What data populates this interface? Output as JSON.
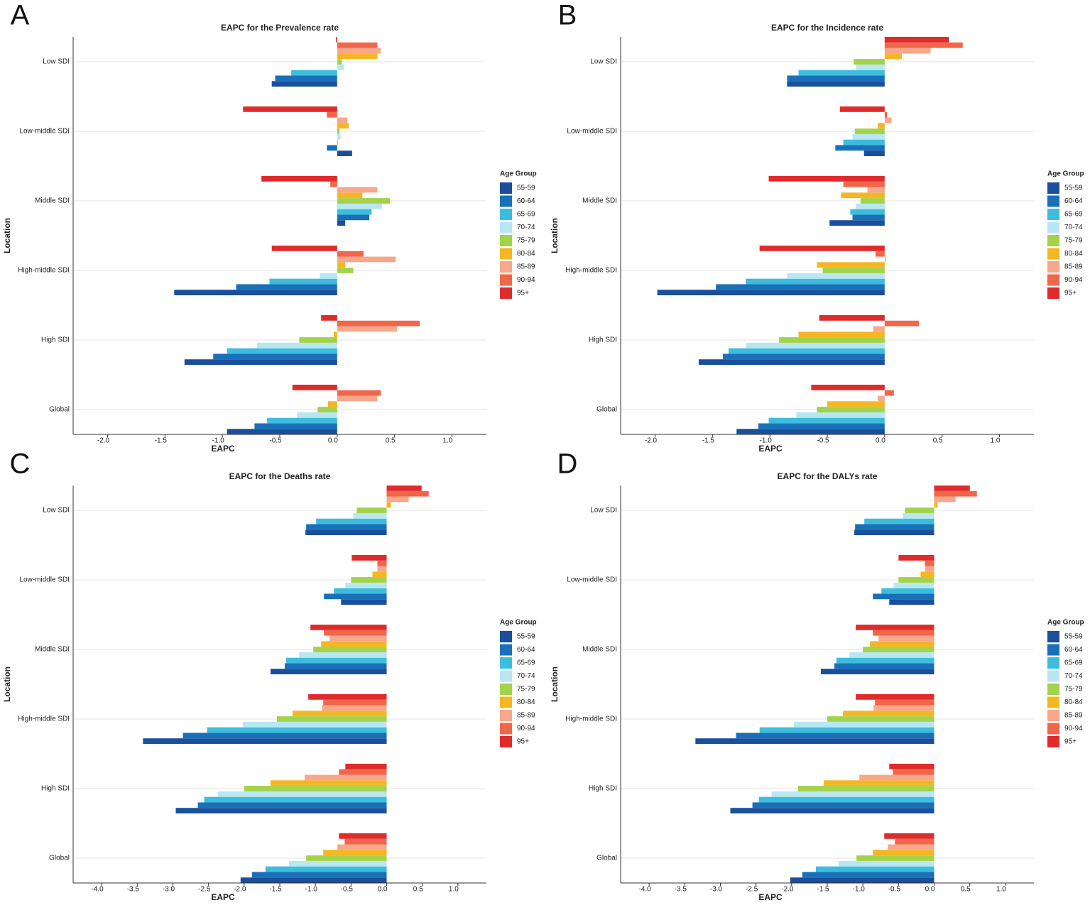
{
  "chart_data": [
    {
      "type": "bar",
      "orientation": "horizontal",
      "panel_label": "A",
      "title": "EAPC for the Prevalence rate",
      "x_label": "EAPC",
      "y_label": "Location",
      "legend_title": "Age Group",
      "categories": [
        "Low SDI",
        "Low-middle SDI",
        "Middle SDI",
        "High-middle SDI",
        "High SDI",
        "Global"
      ],
      "xlim": [
        -2.3,
        1.3
      ],
      "xticks": [
        {
          "value": -2,
          "label": "-2.0"
        },
        -1.5,
        {
          "value": -1,
          "label": "-1.0"
        },
        -0.5,
        {
          "value": 0,
          "label": "0.0"
        },
        0.5,
        {
          "value": 1,
          "label": "1.0"
        }
      ],
      "series": [
        {
          "name": "55-59",
          "color": "#1b4f9c",
          "values": [
            -0.57,
            0.13,
            0.07,
            -1.42,
            -1.33,
            -0.96
          ]
        },
        {
          "name": "60-64",
          "color": "#1a70b8",
          "values": [
            -0.54,
            -0.09,
            0.28,
            -0.88,
            -1.08,
            -0.72
          ]
        },
        {
          "name": "65-69",
          "color": "#3dbddd",
          "values": [
            -0.4,
            0.0,
            0.3,
            -0.59,
            -0.96,
            -0.61
          ]
        },
        {
          "name": "70-74",
          "color": "#b9e7f1",
          "values": [
            0.06,
            0.03,
            0.39,
            -0.15,
            -0.7,
            -0.35
          ]
        },
        {
          "name": "75-79",
          "color": "#a3d24b",
          "values": [
            0.04,
            0.02,
            0.46,
            0.14,
            -0.33,
            -0.17
          ]
        },
        {
          "name": "80-84",
          "color": "#f5b623",
          "values": [
            0.35,
            0.1,
            0.22,
            0.07,
            -0.03,
            -0.08
          ]
        },
        {
          "name": "85-89",
          "color": "#f7a78b",
          "values": [
            0.38,
            0.09,
            0.35,
            0.51,
            0.52,
            0.35
          ]
        },
        {
          "name": "90-94",
          "color": "#f06649",
          "values": [
            0.35,
            -0.09,
            -0.06,
            0.23,
            0.72,
            0.38
          ]
        },
        {
          "name": "95+",
          "color": "#e02b2b",
          "values": [
            -0.01,
            -0.82,
            -0.66,
            -0.57,
            -0.14,
            -0.39
          ]
        }
      ]
    },
    {
      "type": "bar",
      "orientation": "horizontal",
      "panel_label": "B",
      "title": "EAPC for the Incidence rate",
      "x_label": "EAPC",
      "y_label": "Location",
      "legend_title": "Age Group",
      "categories": [
        "Low SDI",
        "Low-middle SDI",
        "Middle SDI",
        "High-middle SDI",
        "High SDI",
        "Global"
      ],
      "xlim": [
        -2.3,
        1.3
      ],
      "xticks": [
        {
          "value": -2,
          "label": "-2.0"
        },
        -1.5,
        {
          "value": -1,
          "label": "-1.0"
        },
        -0.5,
        {
          "value": 0,
          "label": "0.0"
        },
        0.5,
        {
          "value": 1,
          "label": "1.0"
        }
      ],
      "series": [
        {
          "name": "55-59",
          "color": "#1b4f9c",
          "values": [
            -0.85,
            -0.18,
            -0.48,
            -1.98,
            -1.62,
            -1.29
          ]
        },
        {
          "name": "60-64",
          "color": "#1a70b8",
          "values": [
            -0.85,
            -0.43,
            -0.28,
            -1.47,
            -1.41,
            -1.1
          ]
        },
        {
          "name": "65-69",
          "color": "#3dbddd",
          "values": [
            -0.75,
            -0.36,
            -0.3,
            -1.21,
            -1.36,
            -1.01
          ]
        },
        {
          "name": "70-74",
          "color": "#b9e7f1",
          "values": [
            -0.25,
            -0.28,
            -0.25,
            -0.85,
            -1.21,
            -0.77
          ]
        },
        {
          "name": "75-79",
          "color": "#a3d24b",
          "values": [
            -0.27,
            -0.26,
            -0.21,
            -0.54,
            -0.92,
            -0.59
          ]
        },
        {
          "name": "80-84",
          "color": "#f5b623",
          "values": [
            0.15,
            -0.06,
            -0.38,
            -0.59,
            -0.75,
            -0.5
          ]
        },
        {
          "name": "85-89",
          "color": "#f7a78b",
          "values": [
            0.4,
            0.06,
            -0.15,
            0.01,
            -0.1,
            -0.06
          ]
        },
        {
          "name": "90-94",
          "color": "#f06649",
          "values": [
            0.68,
            0.02,
            -0.36,
            -0.08,
            0.3,
            0.08
          ]
        },
        {
          "name": "95+",
          "color": "#e02b2b",
          "values": [
            0.56,
            -0.39,
            -1.01,
            -1.09,
            -0.57,
            -0.64
          ]
        }
      ]
    },
    {
      "type": "bar",
      "orientation": "horizontal",
      "panel_label": "C",
      "title": "EAPC for the Deaths rate",
      "x_label": "EAPC",
      "y_label": "Location",
      "legend_title": "Age Group",
      "categories": [
        "Low SDI",
        "Low-middle SDI",
        "Middle SDI",
        "High-middle SDI",
        "High SDI",
        "Global"
      ],
      "xlim": [
        -4.4,
        1.4
      ],
      "xticks": [
        {
          "value": -4,
          "label": "-4.0"
        },
        -3.5,
        {
          "value": -3,
          "label": "-3.0"
        },
        -2.5,
        {
          "value": -2,
          "label": "-2.0"
        },
        -1.5,
        {
          "value": -1,
          "label": "-1.0"
        },
        -0.5,
        {
          "value": 0,
          "label": "0.0"
        },
        0.5,
        {
          "value": 1,
          "label": "1.0"
        }
      ],
      "series": [
        {
          "name": "55-59",
          "color": "#1b4f9c",
          "values": [
            -1.14,
            -0.64,
            -1.63,
            -3.42,
            -2.96,
            -2.05
          ]
        },
        {
          "name": "60-64",
          "color": "#1a70b8",
          "values": [
            -1.13,
            -0.88,
            -1.43,
            -2.86,
            -2.65,
            -1.89
          ]
        },
        {
          "name": "65-69",
          "color": "#3dbddd",
          "values": [
            -0.99,
            -0.74,
            -1.41,
            -2.52,
            -2.56,
            -1.7
          ]
        },
        {
          "name": "70-74",
          "color": "#b9e7f1",
          "values": [
            -0.47,
            -0.58,
            -1.23,
            -2.02,
            -2.37,
            -1.37
          ]
        },
        {
          "name": "75-79",
          "color": "#a3d24b",
          "values": [
            -0.42,
            -0.5,
            -1.03,
            -1.54,
            -2.0,
            -1.13
          ]
        },
        {
          "name": "80-84",
          "color": "#f5b623",
          "values": [
            0.06,
            -0.2,
            -0.92,
            -1.32,
            -1.63,
            -0.89
          ]
        },
        {
          "name": "85-89",
          "color": "#f7a78b",
          "values": [
            0.31,
            -0.13,
            -0.8,
            -0.91,
            -1.15,
            -0.69
          ]
        },
        {
          "name": "90-94",
          "color": "#f06649",
          "values": [
            0.59,
            -0.13,
            -0.88,
            -0.89,
            -0.67,
            -0.59
          ]
        },
        {
          "name": "95+",
          "color": "#e02b2b",
          "values": [
            0.49,
            -0.49,
            -1.07,
            -1.1,
            -0.58,
            -0.67
          ]
        }
      ]
    },
    {
      "type": "bar",
      "orientation": "horizontal",
      "panel_label": "D",
      "title": "EAPC for the DALYs rate",
      "x_label": "EAPC",
      "y_label": "Location",
      "legend_title": "Age Group",
      "categories": [
        "Low SDI",
        "Low-middle SDI",
        "Middle SDI",
        "High-middle SDI",
        "High SDI",
        "Global"
      ],
      "xlim": [
        -4.4,
        1.4
      ],
      "xticks": [
        {
          "value": -4,
          "label": "-4.0"
        },
        -3.5,
        {
          "value": -3,
          "label": "-3.0"
        },
        -2.5,
        {
          "value": -2,
          "label": "-2.0"
        },
        -1.5,
        {
          "value": -1,
          "label": "-1.0"
        },
        -0.5,
        {
          "value": 0,
          "label": "0.0"
        },
        0.5,
        {
          "value": 1,
          "label": "1.0"
        }
      ],
      "series": [
        {
          "name": "55-59",
          "color": "#1b4f9c",
          "values": [
            -1.12,
            -0.63,
            -1.59,
            -3.35,
            -2.86,
            -2.02
          ]
        },
        {
          "name": "60-64",
          "color": "#1a70b8",
          "values": [
            -1.11,
            -0.86,
            -1.4,
            -2.78,
            -2.55,
            -1.85
          ]
        },
        {
          "name": "65-69",
          "color": "#3dbddd",
          "values": [
            -0.98,
            -0.74,
            -1.37,
            -2.45,
            -2.46,
            -1.66
          ]
        },
        {
          "name": "70-74",
          "color": "#b9e7f1",
          "values": [
            -0.44,
            -0.57,
            -1.19,
            -1.97,
            -2.28,
            -1.34
          ]
        },
        {
          "name": "75-79",
          "color": "#a3d24b",
          "values": [
            -0.41,
            -0.5,
            -1.0,
            -1.5,
            -1.91,
            -1.09
          ]
        },
        {
          "name": "80-84",
          "color": "#f5b623",
          "values": [
            0.05,
            -0.19,
            -0.9,
            -1.28,
            -1.55,
            -0.86
          ]
        },
        {
          "name": "85-89",
          "color": "#f7a78b",
          "values": [
            0.3,
            -0.13,
            -0.78,
            -0.85,
            -1.05,
            -0.65
          ]
        },
        {
          "name": "90-94",
          "color": "#f06649",
          "values": [
            0.6,
            -0.13,
            -0.86,
            -0.83,
            -0.58,
            -0.55
          ]
        },
        {
          "name": "95+",
          "color": "#e02b2b",
          "values": [
            0.5,
            -0.5,
            -1.1,
            -1.1,
            -0.63,
            -0.7
          ]
        }
      ]
    }
  ]
}
